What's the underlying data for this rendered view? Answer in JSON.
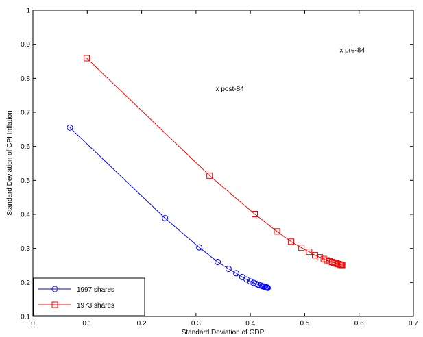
{
  "chart_data": {
    "type": "line",
    "xlabel": "Standard Deviation of GDP",
    "ylabel": "Standard Deviation of CPI Inflation",
    "xlim": [
      0,
      0.7
    ],
    "ylim": [
      0.1,
      1
    ],
    "xticks": [
      0,
      0.1,
      0.2,
      0.3,
      0.4,
      0.5,
      0.6,
      0.7
    ],
    "xtick_labels": [
      "0",
      "0.1",
      "0.2",
      "0.3",
      "0.4",
      "0.5",
      "0.6",
      "0.7"
    ],
    "yticks": [
      0.1,
      0.2,
      0.3,
      0.4,
      0.5,
      0.6,
      0.7,
      0.8,
      0.9,
      1
    ],
    "ytick_labels": [
      "0.1",
      "0.2",
      "0.3",
      "0.4",
      "0.5",
      "0.6",
      "0.7",
      "0.8",
      "0.9",
      "1"
    ],
    "grid": false,
    "legend_position": "bottom-left",
    "series": [
      {
        "name": "1997 shares",
        "color": "#0000ff",
        "marker": "circle",
        "x": [
          0.068,
          0.243,
          0.306,
          0.34,
          0.36,
          0.374,
          0.385,
          0.393,
          0.4,
          0.406,
          0.411,
          0.415,
          0.419,
          0.422,
          0.425,
          0.427,
          0.429,
          0.43,
          0.431,
          0.432
        ],
        "y": [
          0.655,
          0.389,
          0.303,
          0.26,
          0.24,
          0.227,
          0.216,
          0.209,
          0.203,
          0.199,
          0.196,
          0.193,
          0.191,
          0.189,
          0.188,
          0.187,
          0.186,
          0.185,
          0.185,
          0.184
        ]
      },
      {
        "name": "1973 shares",
        "color": "#ff0000",
        "marker": "square",
        "x": [
          0.099,
          0.325,
          0.408,
          0.449,
          0.475,
          0.494,
          0.508,
          0.519,
          0.528,
          0.535,
          0.541,
          0.546,
          0.55,
          0.554,
          0.557,
          0.56,
          0.562,
          0.564,
          0.566,
          0.567,
          0.568,
          0.569
        ],
        "y": [
          0.859,
          0.514,
          0.401,
          0.35,
          0.32,
          0.302,
          0.29,
          0.28,
          0.274,
          0.269,
          0.265,
          0.262,
          0.26,
          0.258,
          0.256,
          0.255,
          0.254,
          0.253,
          0.252,
          0.252,
          0.251,
          0.251
        ]
      }
    ],
    "annotations": [
      {
        "text": "x post-84",
        "x": 0.34,
        "y": 0.768
      },
      {
        "text": "x pre-84",
        "x": 0.568,
        "y": 0.882
      }
    ]
  }
}
